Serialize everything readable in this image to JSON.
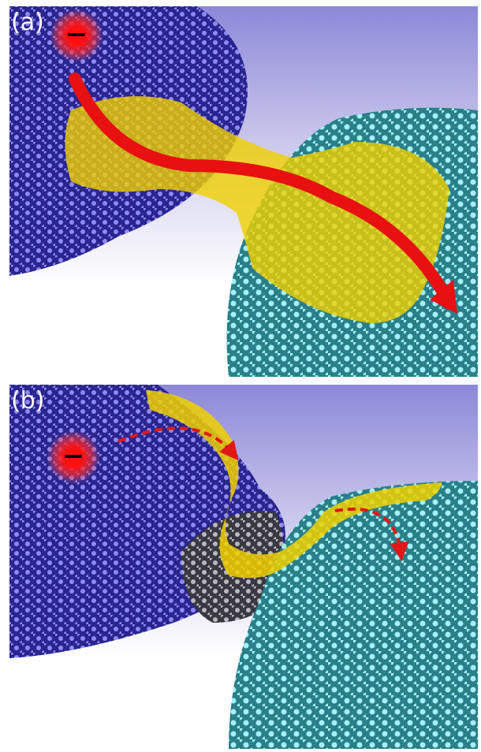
{
  "panels": [
    {
      "label": "(a)",
      "charge": "−"
    },
    {
      "label": "(b)",
      "charge": "−"
    }
  ]
}
